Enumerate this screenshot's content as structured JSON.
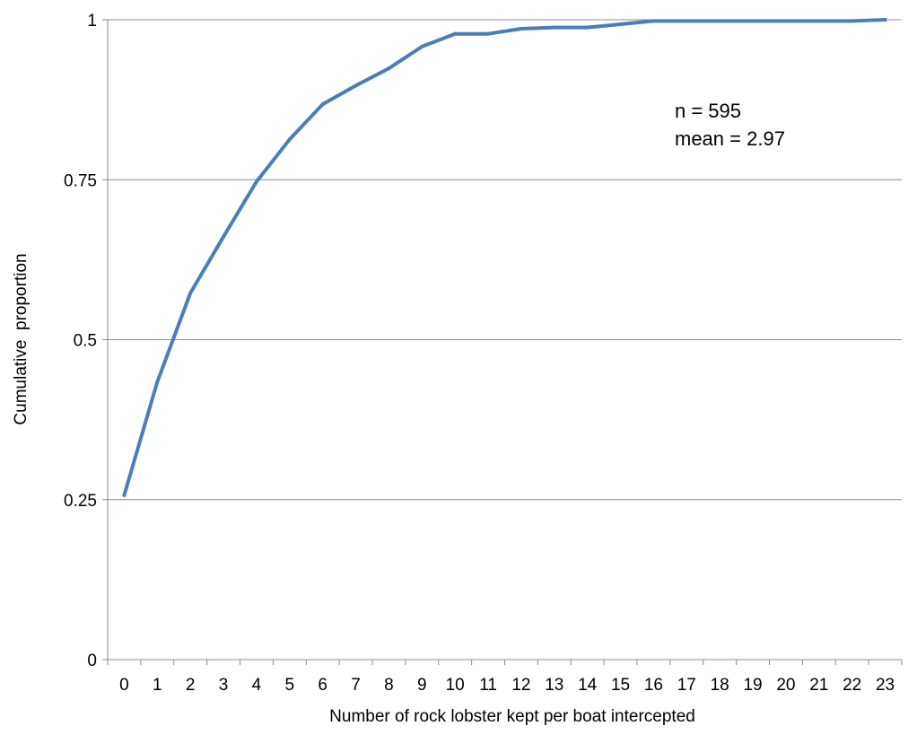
{
  "chart_data": {
    "type": "line",
    "title": "",
    "xlabel": "Number of rock lobster kept per boat intercepted",
    "ylabel": "Cumulative  proportion",
    "categories": [
      "0",
      "1",
      "2",
      "3",
      "4",
      "5",
      "6",
      "7",
      "8",
      "9",
      "10",
      "11",
      "12",
      "13",
      "14",
      "15",
      "16",
      "17",
      "18",
      "19",
      "20",
      "21",
      "22",
      "23"
    ],
    "y_ticks": [
      "0",
      "0.25",
      "0.5",
      "0.75",
      "1"
    ],
    "ylim": [
      0,
      1
    ],
    "grid": true,
    "legend": "none",
    "series": [
      {
        "color": "#4a7ebb",
        "values": [
          0.257,
          0.434,
          0.573,
          0.661,
          0.747,
          0.813,
          0.868,
          0.897,
          0.924,
          0.958,
          0.978,
          0.978,
          0.986,
          0.988,
          0.988,
          0.993,
          0.998,
          0.998,
          0.998,
          0.998,
          0.998,
          0.998,
          0.998,
          1.0
        ]
      }
    ],
    "annotations": [
      "n = 595",
      "mean = 2.97"
    ]
  }
}
